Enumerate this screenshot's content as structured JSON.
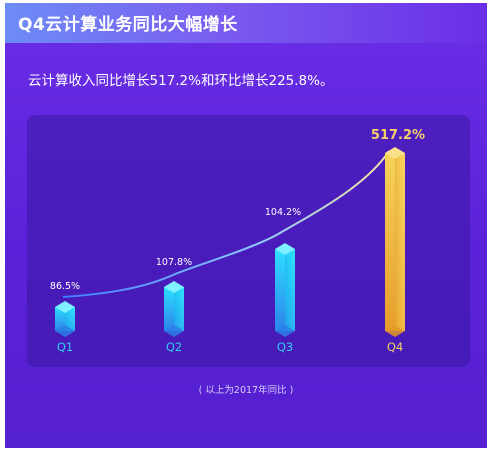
{
  "title": "Q4云计算业务同比大幅增长",
  "subtitle": "云计算收入同比增长517.2%和环比增长225.8%。",
  "footnote": "( 以上为2017年同比 )",
  "colors": {
    "background": "#6a2ee6",
    "bar_blue": "#22d4f5",
    "bar_gold": "#f3c548",
    "label_gold": "#f5cf6a",
    "curve": "#8fd0ff"
  },
  "chart_data": {
    "type": "bar",
    "title": "Q4云计算业务同比大幅增长",
    "categories": [
      "Q1",
      "Q2",
      "Q3",
      "Q4"
    ],
    "values": [
      86.5,
      107.8,
      104.2,
      517.2
    ],
    "data_labels": [
      "86.5%",
      "107.8%",
      "104.2%",
      "517.2%"
    ],
    "unit": "%",
    "xlabel": "",
    "ylabel": "",
    "grid": false,
    "legend": "none"
  }
}
